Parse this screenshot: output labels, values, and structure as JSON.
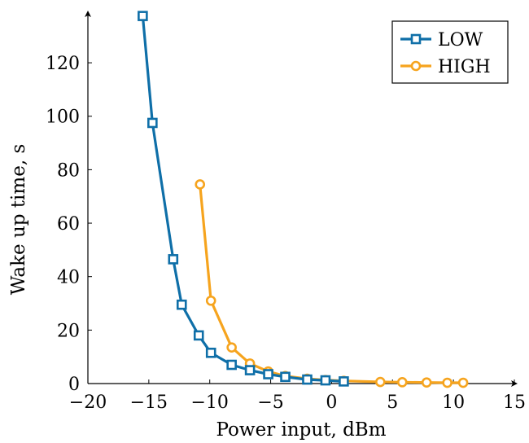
{
  "chart_data": {
    "type": "line",
    "xlabel": "Power input, dBm",
    "ylabel": "Wake up time, s",
    "xlim": [
      -20,
      15
    ],
    "ylim": [
      0,
      138
    ],
    "xticks": [
      -20,
      -15,
      -10,
      -5,
      0,
      5,
      10,
      15
    ],
    "yticks": [
      0,
      20,
      40,
      60,
      80,
      100,
      120
    ],
    "xtick_labels": [
      "−20",
      "−15",
      "−10",
      "−5",
      "0",
      "5",
      "10",
      "15"
    ],
    "ytick_labels": [
      "0",
      "20",
      "40",
      "60",
      "80",
      "100",
      "120"
    ],
    "grid": false,
    "legend_position": "top-right",
    "series": [
      {
        "name": "LOW",
        "color": "#0f6fa8",
        "marker": "square",
        "x": [
          -15.5,
          -14.7,
          -13.0,
          -12.3,
          -10.9,
          -9.9,
          -8.2,
          -6.7,
          -5.2,
          -3.8,
          -2.0,
          -0.5,
          1.0
        ],
        "y": [
          137.5,
          97.5,
          46.5,
          29.5,
          18.0,
          11.5,
          7.0,
          5.0,
          3.5,
          2.5,
          1.5,
          1.2,
          0.8
        ]
      },
      {
        "name": "HIGH",
        "color": "#f6a41e",
        "marker": "circle",
        "x": [
          -10.8,
          -9.9,
          -8.2,
          -6.7,
          -5.2,
          -3.8,
          -2.0,
          -0.5,
          1.0,
          4.0,
          5.8,
          7.8,
          9.5,
          10.8
        ],
        "y": [
          74.5,
          31.0,
          13.5,
          7.5,
          4.5,
          2.8,
          1.8,
          1.3,
          1.0,
          0.6,
          0.5,
          0.4,
          0.3,
          0.3
        ]
      }
    ]
  }
}
